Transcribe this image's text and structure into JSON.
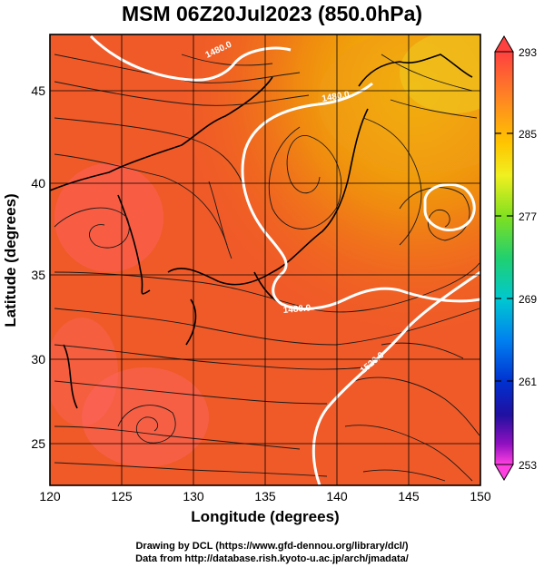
{
  "figure": {
    "title": "MSM 06Z20Jul2023 (850.0hPa)",
    "x_axis_label": "Longitude (degrees)",
    "y_axis_label": "Latitude  (degrees)",
    "credit_line_1": "Drawing by DCL (https://www.gfd-dennou.org/library/dcl/)",
    "credit_line_2": "Data from http://database.rish.kyoto-u.ac.jp/arch/jmadata/"
  },
  "map": {
    "lon_range": [
      120,
      150
    ],
    "lat_range": [
      22.4,
      47.6
    ],
    "x_ticks": [
      120,
      125,
      130,
      135,
      140,
      145,
      150
    ],
    "y_ticks": [
      25,
      30,
      35,
      40,
      45
    ],
    "gridlines": true,
    "contour_labels": [
      "1480.0",
      "1480.0",
      "1480.0",
      "1520.0"
    ]
  },
  "colorbar": {
    "tick_labels": [
      "293",
      "285",
      "277",
      "269",
      "261",
      "253"
    ],
    "colors": [
      "#ff5050",
      "#ff7a28",
      "#ffb000",
      "#ffee22",
      "#b8f020",
      "#44d830",
      "#00d0a0",
      "#00b8e0",
      "#0080ff",
      "#0030d0",
      "#2010a0",
      "#8010c0",
      "#ff30e0"
    ]
  }
}
